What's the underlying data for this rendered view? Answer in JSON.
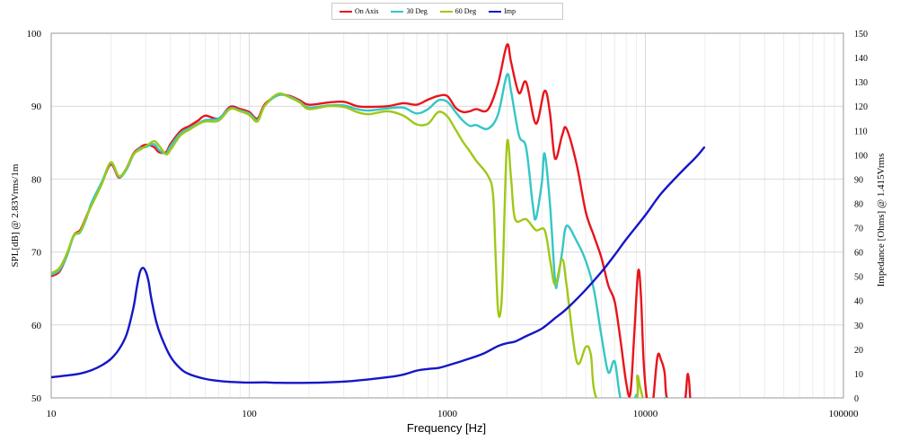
{
  "chart_data": {
    "type": "line",
    "xlabel": "Frequency [Hz]",
    "ylabel_left": "SPL[dB] @ 2.83Vrms/1m",
    "ylabel_right": "Impedance [Ohms] @ 1.415Vrms",
    "x_scale": "log",
    "xlim": [
      10,
      100000
    ],
    "ylim_left": [
      50,
      100
    ],
    "ylim_right": [
      0,
      150
    ],
    "x_ticks": [
      10,
      100,
      1000,
      10000,
      100000
    ],
    "x_tick_labels": [
      "10",
      "100",
      "1000",
      "10000",
      "100000"
    ],
    "y_left_ticks": [
      50,
      60,
      70,
      80,
      90,
      100
    ],
    "y_left_tick_labels": [
      "50",
      "60",
      "70",
      "80",
      "90",
      "100"
    ],
    "y_right_ticks": [
      0,
      10,
      20,
      30,
      40,
      50,
      60,
      70,
      80,
      90,
      100,
      110,
      120,
      130,
      140,
      150
    ],
    "y_right_tick_labels": [
      "0",
      "10",
      "20",
      "30",
      "40",
      "50",
      "60",
      "70",
      "80",
      "90",
      "100",
      "110",
      "120",
      "130",
      "140",
      "150"
    ],
    "grid": true,
    "legend_position": "top-center",
    "series": [
      {
        "name": "On Axis",
        "color": "#e8141c",
        "axis": "left",
        "points": [
          [
            10,
            66.7
          ],
          [
            11,
            67.3
          ],
          [
            12,
            69.5
          ],
          [
            13,
            72.3
          ],
          [
            14,
            73.0
          ],
          [
            15,
            74.8
          ],
          [
            16,
            76.5
          ],
          [
            18,
            79.4
          ],
          [
            20,
            82.0
          ],
          [
            22,
            80.2
          ],
          [
            24,
            81.5
          ],
          [
            26,
            83.5
          ],
          [
            28,
            84.3
          ],
          [
            30,
            84.7
          ],
          [
            33,
            84.4
          ],
          [
            35,
            83.7
          ],
          [
            38,
            83.7
          ],
          [
            40,
            84.8
          ],
          [
            45,
            86.6
          ],
          [
            50,
            87.3
          ],
          [
            55,
            88.0
          ],
          [
            60,
            88.7
          ],
          [
            70,
            88.3
          ],
          [
            80,
            89.9
          ],
          [
            90,
            89.6
          ],
          [
            100,
            89.2
          ],
          [
            110,
            88.3
          ],
          [
            120,
            90.3
          ],
          [
            140,
            91.5
          ],
          [
            160,
            91.4
          ],
          [
            180,
            90.8
          ],
          [
            200,
            90.2
          ],
          [
            250,
            90.5
          ],
          [
            300,
            90.6
          ],
          [
            350,
            90.0
          ],
          [
            400,
            89.9
          ],
          [
            500,
            90.0
          ],
          [
            600,
            90.4
          ],
          [
            700,
            90.2
          ],
          [
            800,
            90.9
          ],
          [
            900,
            91.4
          ],
          [
            1000,
            91.4
          ],
          [
            1100,
            89.8
          ],
          [
            1200,
            89.2
          ],
          [
            1300,
            89.3
          ],
          [
            1400,
            89.6
          ],
          [
            1600,
            89.5
          ],
          [
            1800,
            93.0
          ],
          [
            2000,
            98.4
          ],
          [
            2100,
            96.0
          ],
          [
            2300,
            91.8
          ],
          [
            2500,
            93.3
          ],
          [
            2800,
            87.6
          ],
          [
            3100,
            92.1
          ],
          [
            3300,
            89.0
          ],
          [
            3500,
            82.8
          ],
          [
            3800,
            86.0
          ],
          [
            4000,
            86.9
          ],
          [
            4500,
            82.0
          ],
          [
            5000,
            75.5
          ],
          [
            5500,
            72.2
          ],
          [
            6000,
            69.2
          ],
          [
            6500,
            65.4
          ],
          [
            7000,
            63.2
          ],
          [
            7500,
            57.8
          ],
          [
            8000,
            52.1
          ],
          [
            8400,
            50.6
          ],
          [
            8800,
            59.0
          ],
          [
            9200,
            67.4
          ],
          [
            9500,
            64.0
          ],
          [
            9800,
            55.0
          ],
          [
            10200,
            49.8
          ],
          [
            10800,
            48.5
          ],
          [
            11500,
            55.6
          ],
          [
            12000,
            55.2
          ],
          [
            12500,
            53.5
          ],
          [
            13000,
            49.5
          ],
          [
            15500,
            48.5
          ],
          [
            16400,
            53.3
          ],
          [
            17000,
            48.0
          ]
        ]
      },
      {
        "name": "30 Deg",
        "color": "#35c6c6",
        "axis": "left",
        "points": [
          [
            10,
            66.9
          ],
          [
            11,
            67.5
          ],
          [
            12,
            69.5
          ],
          [
            13,
            72.2
          ],
          [
            14,
            72.7
          ],
          [
            15,
            74.5
          ],
          [
            16,
            76.8
          ],
          [
            18,
            79.6
          ],
          [
            20,
            82.2
          ],
          [
            22,
            80.3
          ],
          [
            24,
            81.3
          ],
          [
            26,
            83.3
          ],
          [
            28,
            84.2
          ],
          [
            30,
            84.4
          ],
          [
            33,
            84.8
          ],
          [
            35,
            84.0
          ],
          [
            38,
            83.5
          ],
          [
            40,
            84.5
          ],
          [
            45,
            86.3
          ],
          [
            50,
            87.0
          ],
          [
            55,
            87.6
          ],
          [
            60,
            88.1
          ],
          [
            70,
            88.3
          ],
          [
            80,
            89.7
          ],
          [
            90,
            89.4
          ],
          [
            100,
            89.0
          ],
          [
            110,
            88.1
          ],
          [
            120,
            90.1
          ],
          [
            140,
            91.5
          ],
          [
            160,
            91.3
          ],
          [
            180,
            90.6
          ],
          [
            200,
            89.8
          ],
          [
            250,
            90.1
          ],
          [
            300,
            90.1
          ],
          [
            350,
            89.6
          ],
          [
            400,
            89.4
          ],
          [
            500,
            89.7
          ],
          [
            600,
            89.8
          ],
          [
            700,
            89.0
          ],
          [
            800,
            89.6
          ],
          [
            900,
            90.8
          ],
          [
            1000,
            90.6
          ],
          [
            1100,
            89.2
          ],
          [
            1200,
            88.0
          ],
          [
            1300,
            87.3
          ],
          [
            1400,
            87.4
          ],
          [
            1600,
            86.9
          ],
          [
            1800,
            88.8
          ],
          [
            2000,
            94.3
          ],
          [
            2100,
            92.0
          ],
          [
            2300,
            86.0
          ],
          [
            2500,
            84.3
          ],
          [
            2700,
            76.5
          ],
          [
            2800,
            74.6
          ],
          [
            3000,
            79.5
          ],
          [
            3100,
            83.5
          ],
          [
            3300,
            76.5
          ],
          [
            3500,
            66.0
          ],
          [
            3600,
            66.0
          ],
          [
            3800,
            70.0
          ],
          [
            4000,
            73.6
          ],
          [
            4500,
            71.5
          ],
          [
            5000,
            68.8
          ],
          [
            5500,
            64.8
          ],
          [
            6000,
            58.5
          ],
          [
            6500,
            53.5
          ],
          [
            7000,
            55.0
          ],
          [
            7500,
            49.9
          ],
          [
            8400,
            48.0
          ],
          [
            9000,
            50.4
          ],
          [
            9500,
            49.2
          ],
          [
            12700,
            50.0
          ]
        ]
      },
      {
        "name": "60 Deg",
        "color": "#9fc817",
        "axis": "left",
        "points": [
          [
            10,
            67.1
          ],
          [
            11,
            67.8
          ],
          [
            12,
            69.8
          ],
          [
            13,
            72.3
          ],
          [
            14,
            72.8
          ],
          [
            15,
            74.7
          ],
          [
            16,
            76.4
          ],
          [
            18,
            79.3
          ],
          [
            20,
            82.3
          ],
          [
            22,
            80.4
          ],
          [
            24,
            81.5
          ],
          [
            26,
            83.4
          ],
          [
            28,
            84.0
          ],
          [
            30,
            84.5
          ],
          [
            33,
            85.2
          ],
          [
            35,
            84.6
          ],
          [
            38,
            83.4
          ],
          [
            40,
            84.0
          ],
          [
            45,
            86.0
          ],
          [
            50,
            86.8
          ],
          [
            55,
            87.5
          ],
          [
            60,
            87.9
          ],
          [
            70,
            88.0
          ],
          [
            80,
            89.6
          ],
          [
            90,
            89.3
          ],
          [
            100,
            88.8
          ],
          [
            110,
            87.9
          ],
          [
            120,
            90.1
          ],
          [
            140,
            91.7
          ],
          [
            160,
            91.2
          ],
          [
            180,
            90.5
          ],
          [
            200,
            89.6
          ],
          [
            250,
            90.0
          ],
          [
            300,
            89.9
          ],
          [
            350,
            89.2
          ],
          [
            400,
            88.9
          ],
          [
            500,
            89.3
          ],
          [
            600,
            88.7
          ],
          [
            700,
            87.5
          ],
          [
            800,
            87.6
          ],
          [
            900,
            89.2
          ],
          [
            1000,
            88.6
          ],
          [
            1100,
            86.8
          ],
          [
            1200,
            85.1
          ],
          [
            1300,
            83.8
          ],
          [
            1400,
            82.5
          ],
          [
            1600,
            80.5
          ],
          [
            1700,
            78.0
          ],
          [
            1750,
            70.0
          ],
          [
            1800,
            62.3
          ],
          [
            1850,
            61.5
          ],
          [
            1900,
            66.0
          ],
          [
            2000,
            84.8
          ],
          [
            2100,
            80.0
          ],
          [
            2200,
            74.5
          ],
          [
            2500,
            74.5
          ],
          [
            2800,
            73.0
          ],
          [
            3100,
            73.0
          ],
          [
            3300,
            69.0
          ],
          [
            3500,
            65.5
          ],
          [
            3800,
            69.0
          ],
          [
            4000,
            65.5
          ],
          [
            4500,
            55.0
          ],
          [
            5000,
            57.0
          ],
          [
            5300,
            56.0
          ],
          [
            5800,
            49.5
          ],
          [
            8800,
            49.5
          ],
          [
            9100,
            53.0
          ],
          [
            9400,
            51.5
          ],
          [
            9800,
            49.5
          ]
        ]
      },
      {
        "name": "Imp",
        "color": "#1616c8",
        "axis": "right",
        "points": [
          [
            10,
            8.5
          ],
          [
            12,
            9.2
          ],
          [
            14,
            10.0
          ],
          [
            16,
            11.4
          ],
          [
            18,
            13.4
          ],
          [
            20,
            16.0
          ],
          [
            22,
            20.0
          ],
          [
            24,
            26.0
          ],
          [
            26,
            37.0
          ],
          [
            27,
            45.0
          ],
          [
            28,
            51.5
          ],
          [
            29,
            53.5
          ],
          [
            30,
            52.0
          ],
          [
            31,
            48.0
          ],
          [
            32,
            41.0
          ],
          [
            34,
            31.0
          ],
          [
            36,
            25.0
          ],
          [
            40,
            17.0
          ],
          [
            45,
            12.0
          ],
          [
            50,
            9.7
          ],
          [
            60,
            7.8
          ],
          [
            70,
            7.0
          ],
          [
            80,
            6.6
          ],
          [
            100,
            6.3
          ],
          [
            120,
            6.4
          ],
          [
            140,
            6.2
          ],
          [
            200,
            6.2
          ],
          [
            300,
            6.7
          ],
          [
            400,
            7.6
          ],
          [
            500,
            8.5
          ],
          [
            600,
            9.6
          ],
          [
            700,
            11.2
          ],
          [
            800,
            11.9
          ],
          [
            900,
            12.3
          ],
          [
            1000,
            13.3
          ],
          [
            1200,
            15.3
          ],
          [
            1500,
            18.0
          ],
          [
            1800,
            21.3
          ],
          [
            2000,
            22.5
          ],
          [
            2200,
            23.2
          ],
          [
            2500,
            25.4
          ],
          [
            3000,
            28.5
          ],
          [
            3500,
            32.8
          ],
          [
            4000,
            36.6
          ],
          [
            5000,
            44.5
          ],
          [
            6000,
            51.8
          ],
          [
            7000,
            58.8
          ],
          [
            8000,
            65.2
          ],
          [
            10000,
            75.2
          ],
          [
            12000,
            84.0
          ],
          [
            15000,
            92.5
          ],
          [
            18000,
            99.0
          ],
          [
            19800,
            103.0
          ]
        ]
      }
    ]
  }
}
